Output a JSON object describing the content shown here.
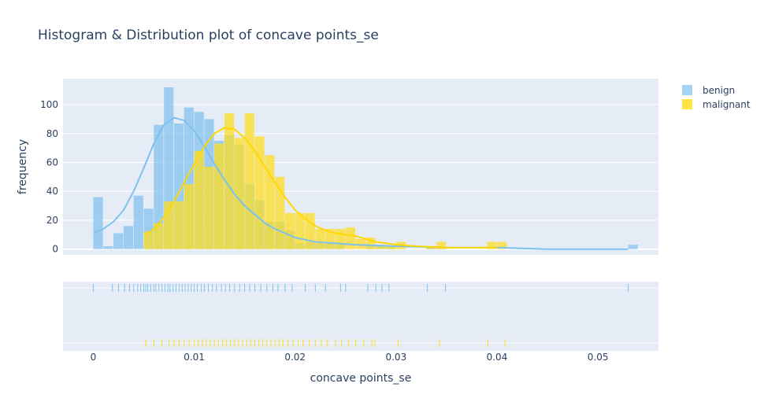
{
  "chart_data": {
    "type": "histogram",
    "title": "Histogram & Distribution plot of concave points_se",
    "xlabel": "concave points_se",
    "ylabel": "frequency",
    "xlim": [
      -0.003,
      0.056
    ],
    "ylim": [
      -4,
      118
    ],
    "yticks": [
      0,
      20,
      40,
      60,
      80,
      100
    ],
    "xticks": [
      0,
      0.01,
      0.02,
      0.03,
      0.04,
      0.05
    ],
    "xtick_labels": [
      "0",
      "0.01",
      "0.02",
      "0.03",
      "0.04",
      "0.05"
    ],
    "grid": true,
    "legend_position": "top-right",
    "bin_width": 0.001,
    "series": [
      {
        "name": "benign",
        "color": "#7ec1ee",
        "bins": [
          {
            "x0": 0.0,
            "count": 36
          },
          {
            "x0": 0.001,
            "count": 2
          },
          {
            "x0": 0.002,
            "count": 11
          },
          {
            "x0": 0.003,
            "count": 16
          },
          {
            "x0": 0.004,
            "count": 37
          },
          {
            "x0": 0.005,
            "count": 28
          },
          {
            "x0": 0.006,
            "count": 86
          },
          {
            "x0": 0.007,
            "count": 112
          },
          {
            "x0": 0.008,
            "count": 87
          },
          {
            "x0": 0.009,
            "count": 98
          },
          {
            "x0": 0.01,
            "count": 95
          },
          {
            "x0": 0.011,
            "count": 90
          },
          {
            "x0": 0.012,
            "count": 75
          },
          {
            "x0": 0.013,
            "count": 79
          },
          {
            "x0": 0.014,
            "count": 72
          },
          {
            "x0": 0.015,
            "count": 45
          },
          {
            "x0": 0.016,
            "count": 34
          },
          {
            "x0": 0.017,
            "count": 19
          },
          {
            "x0": 0.018,
            "count": 19
          },
          {
            "x0": 0.019,
            "count": 13
          },
          {
            "x0": 0.02,
            "count": 4
          },
          {
            "x0": 0.021,
            "count": 5
          },
          {
            "x0": 0.022,
            "count": 4
          },
          {
            "x0": 0.023,
            "count": 4
          },
          {
            "x0": 0.024,
            "count": 4
          },
          {
            "x0": 0.025,
            "count": 0
          },
          {
            "x0": 0.026,
            "count": 0
          },
          {
            "x0": 0.027,
            "count": 3
          },
          {
            "x0": 0.028,
            "count": 3
          },
          {
            "x0": 0.029,
            "count": 2
          },
          {
            "x0": 0.033,
            "count": 2
          },
          {
            "x0": 0.034,
            "count": 2
          },
          {
            "x0": 0.053,
            "count": 3
          }
        ],
        "kde": [
          [
            0.0,
            11
          ],
          [
            0.001,
            14
          ],
          [
            0.002,
            19
          ],
          [
            0.003,
            27
          ],
          [
            0.004,
            40
          ],
          [
            0.005,
            56
          ],
          [
            0.006,
            73
          ],
          [
            0.007,
            86
          ],
          [
            0.008,
            91
          ],
          [
            0.009,
            89
          ],
          [
            0.01,
            82
          ],
          [
            0.011,
            71
          ],
          [
            0.012,
            59
          ],
          [
            0.013,
            48
          ],
          [
            0.014,
            38
          ],
          [
            0.015,
            30
          ],
          [
            0.016,
            24
          ],
          [
            0.017,
            18
          ],
          [
            0.018,
            14
          ],
          [
            0.019,
            11
          ],
          [
            0.02,
            8
          ],
          [
            0.022,
            5
          ],
          [
            0.024,
            4
          ],
          [
            0.026,
            3
          ],
          [
            0.03,
            2
          ],
          [
            0.035,
            1
          ],
          [
            0.04,
            1
          ],
          [
            0.045,
            0
          ],
          [
            0.053,
            0
          ]
        ],
        "rug": [
          0.0,
          0.0019,
          0.0025,
          0.0031,
          0.0036,
          0.004,
          0.0044,
          0.0047,
          0.005,
          0.0052,
          0.0054,
          0.0057,
          0.006,
          0.0062,
          0.0065,
          0.0068,
          0.0071,
          0.0074,
          0.0076,
          0.0079,
          0.0082,
          0.0085,
          0.0088,
          0.0091,
          0.0094,
          0.0097,
          0.01,
          0.0103,
          0.0107,
          0.011,
          0.0114,
          0.0118,
          0.0122,
          0.0127,
          0.0131,
          0.0135,
          0.014,
          0.0145,
          0.015,
          0.0155,
          0.016,
          0.0166,
          0.0172,
          0.0178,
          0.0183,
          0.019,
          0.0197,
          0.021,
          0.022,
          0.023,
          0.0245,
          0.025,
          0.0272,
          0.028,
          0.0286,
          0.0293,
          0.0331,
          0.0349,
          0.053
        ]
      },
      {
        "name": "malignant",
        "color": "#ffdd22",
        "bins": [
          {
            "x0": 0.005,
            "count": 12
          },
          {
            "x0": 0.006,
            "count": 18
          },
          {
            "x0": 0.007,
            "count": 33
          },
          {
            "x0": 0.008,
            "count": 33
          },
          {
            "x0": 0.009,
            "count": 45
          },
          {
            "x0": 0.01,
            "count": 68
          },
          {
            "x0": 0.011,
            "count": 57
          },
          {
            "x0": 0.012,
            "count": 73
          },
          {
            "x0": 0.013,
            "count": 94
          },
          {
            "x0": 0.014,
            "count": 77
          },
          {
            "x0": 0.015,
            "count": 94
          },
          {
            "x0": 0.016,
            "count": 78
          },
          {
            "x0": 0.017,
            "count": 65
          },
          {
            "x0": 0.018,
            "count": 50
          },
          {
            "x0": 0.019,
            "count": 25
          },
          {
            "x0": 0.02,
            "count": 25
          },
          {
            "x0": 0.021,
            "count": 25
          },
          {
            "x0": 0.022,
            "count": 14
          },
          {
            "x0": 0.023,
            "count": 14
          },
          {
            "x0": 0.024,
            "count": 14
          },
          {
            "x0": 0.025,
            "count": 15
          },
          {
            "x0": 0.026,
            "count": 7
          },
          {
            "x0": 0.027,
            "count": 8
          },
          {
            "x0": 0.028,
            "count": 3
          },
          {
            "x0": 0.029,
            "count": 2
          },
          {
            "x0": 0.03,
            "count": 5
          },
          {
            "x0": 0.033,
            "count": 2
          },
          {
            "x0": 0.034,
            "count": 5
          },
          {
            "x0": 0.039,
            "count": 5
          },
          {
            "x0": 0.04,
            "count": 5
          }
        ],
        "kde": [
          [
            0.0052,
            10
          ],
          [
            0.006,
            14
          ],
          [
            0.007,
            22
          ],
          [
            0.008,
            33
          ],
          [
            0.009,
            46
          ],
          [
            0.01,
            59
          ],
          [
            0.011,
            71
          ],
          [
            0.012,
            80
          ],
          [
            0.013,
            84
          ],
          [
            0.014,
            83
          ],
          [
            0.015,
            77
          ],
          [
            0.016,
            68
          ],
          [
            0.017,
            57
          ],
          [
            0.018,
            46
          ],
          [
            0.019,
            36
          ],
          [
            0.02,
            27
          ],
          [
            0.021,
            21
          ],
          [
            0.022,
            16
          ],
          [
            0.023,
            13
          ],
          [
            0.024,
            11
          ],
          [
            0.025,
            10
          ],
          [
            0.026,
            9
          ],
          [
            0.027,
            7
          ],
          [
            0.028,
            5
          ],
          [
            0.029,
            4
          ],
          [
            0.03,
            3
          ],
          [
            0.032,
            2
          ],
          [
            0.035,
            1
          ],
          [
            0.04,
            1
          ]
        ],
        "rug": [
          0.0052,
          0.006,
          0.0068,
          0.0075,
          0.008,
          0.0085,
          0.009,
          0.0095,
          0.01,
          0.0104,
          0.0108,
          0.0112,
          0.0116,
          0.012,
          0.0124,
          0.0128,
          0.0132,
          0.0136,
          0.014,
          0.0144,
          0.0148,
          0.0152,
          0.0156,
          0.016,
          0.0164,
          0.0168,
          0.0172,
          0.0176,
          0.018,
          0.0184,
          0.0188,
          0.0193,
          0.0198,
          0.0203,
          0.0208,
          0.0214,
          0.022,
          0.0226,
          0.0232,
          0.024,
          0.0246,
          0.0253,
          0.026,
          0.0268,
          0.0276,
          0.0279,
          0.0302,
          0.0343,
          0.0391,
          0.0408
        ]
      }
    ]
  }
}
